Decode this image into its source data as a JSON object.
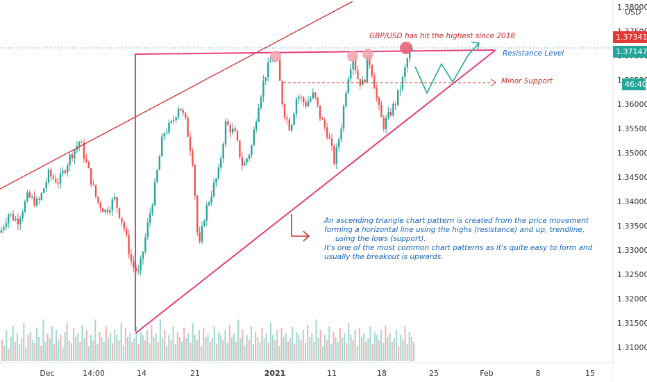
{
  "chart_data": {
    "type": "candlestick",
    "pair": "GBP/USD",
    "currency_label": "USD",
    "y_axis": {
      "range": [
        1.3075,
        1.3835
      ],
      "ticks": [
        "1.38000",
        "1.37500",
        "1.37000",
        "1.36500",
        "1.36000",
        "1.35500",
        "1.35000",
        "1.34500",
        "1.34000",
        "1.33500",
        "1.33000",
        "1.32500",
        "1.32000",
        "1.31500",
        "1.31000"
      ]
    },
    "x_axis": {
      "ticks": [
        "Dec",
        "14:00",
        "14",
        "21",
        "2021",
        "11",
        "18",
        "25",
        "Feb",
        "8",
        "15"
      ]
    },
    "price_badges": {
      "last_price": {
        "value": "1.37341",
        "color": "#e53935"
      },
      "current_price": {
        "value": "1.37147",
        "color": "#26a69a"
      },
      "countdown": {
        "value": "46:40",
        "color": "#26a69a"
      }
    },
    "annotations": {
      "headline": "GBP/USD has hit the highest since 2018",
      "resistance_label": "Resistance Level",
      "support_label": "Minor Support",
      "explanation": [
        "An ascending triangle chart pattern is created from the price movement",
        "forming a horizontal line using the highs (resistance)  and up, trendline,",
        "using the lows (support).",
        "It's one of the most common chart patterns as it's quite easy to form and",
        "usually the breakout is upwards."
      ]
    },
    "levels": {
      "resistance": 1.3713,
      "minor_support": 1.3645,
      "triangle_low": 1.3125
    },
    "price_path": [
      [
        0,
        1.3335
      ],
      [
        12,
        1.3375
      ],
      [
        25,
        1.336
      ],
      [
        40,
        1.341
      ],
      [
        55,
        1.3395
      ],
      [
        70,
        1.3455
      ],
      [
        85,
        1.344
      ],
      [
        100,
        1.349
      ],
      [
        115,
        1.3525
      ],
      [
        128,
        1.346
      ],
      [
        140,
        1.34
      ],
      [
        152,
        1.338
      ],
      [
        165,
        1.3405
      ],
      [
        178,
        1.335
      ],
      [
        190,
        1.327
      ],
      [
        200,
        1.325
      ],
      [
        210,
        1.333
      ],
      [
        222,
        1.342
      ],
      [
        235,
        1.354
      ],
      [
        248,
        1.356
      ],
      [
        258,
        1.36
      ],
      [
        268,
        1.356
      ],
      [
        278,
        1.348
      ],
      [
        286,
        1.3295
      ],
      [
        295,
        1.3375
      ],
      [
        305,
        1.342
      ],
      [
        315,
        1.346
      ],
      [
        325,
        1.356
      ],
      [
        338,
        1.354
      ],
      [
        350,
        1.347
      ],
      [
        362,
        1.351
      ],
      [
        372,
        1.36
      ],
      [
        382,
        1.366
      ],
      [
        392,
        1.3695
      ],
      [
        400,
        1.368
      ],
      [
        408,
        1.359
      ],
      [
        418,
        1.355
      ],
      [
        428,
        1.362
      ],
      [
        440,
        1.36
      ],
      [
        452,
        1.362
      ],
      [
        462,
        1.357
      ],
      [
        472,
        1.354
      ],
      [
        482,
        1.348
      ],
      [
        492,
        1.356
      ],
      [
        500,
        1.365
      ],
      [
        508,
        1.37
      ],
      [
        516,
        1.365
      ],
      [
        524,
        1.364
      ],
      [
        530,
        1.37
      ],
      [
        537,
        1.366
      ],
      [
        544,
        1.36
      ],
      [
        552,
        1.3555
      ],
      [
        560,
        1.3575
      ],
      [
        570,
        1.3605
      ],
      [
        580,
        1.365
      ],
      [
        588,
        1.37
      ],
      [
        596,
        1.3715
      ]
    ],
    "volume": [
      30,
      22,
      45,
      18,
      35,
      50,
      28,
      40,
      25,
      33,
      55,
      20,
      38,
      42,
      30,
      26,
      48,
      35,
      22,
      60,
      28,
      40,
      33,
      50,
      25,
      45,
      30,
      38,
      20,
      42,
      55,
      30,
      26,
      48,
      35,
      40,
      28,
      52,
      33,
      45,
      22,
      38,
      30,
      60,
      25,
      42,
      35,
      28,
      50,
      33,
      40,
      26,
      45,
      38,
      30,
      55,
      22,
      48,
      35,
      40,
      28,
      33,
      50,
      25,
      42,
      38,
      30,
      45,
      26,
      52,
      35,
      40,
      28,
      60,
      33,
      45,
      22,
      38,
      30,
      50,
      25,
      42,
      35,
      28,
      48,
      33,
      40,
      26,
      55,
      38,
      30,
      45,
      22,
      48,
      35,
      40,
      28,
      33,
      50,
      25,
      42,
      38,
      30,
      45,
      26,
      52,
      35,
      40,
      28,
      60,
      33,
      45,
      22,
      38,
      30,
      50,
      25,
      42,
      35,
      28,
      48,
      33,
      40,
      26,
      55,
      38,
      30,
      45,
      22,
      48,
      35,
      40,
      28,
      33,
      50,
      25,
      42,
      38,
      30,
      45,
      26,
      52,
      35,
      40,
      28,
      60,
      33,
      45,
      22,
      38,
      30,
      50,
      25,
      42,
      35,
      28,
      48,
      33,
      40,
      26,
      55,
      38,
      30,
      45,
      22,
      48,
      35,
      40,
      28,
      33,
      50,
      25,
      42,
      38,
      30,
      45,
      26,
      52,
      35,
      40,
      28,
      33,
      45,
      22,
      38,
      30,
      50,
      25,
      42,
      35,
      28
    ]
  }
}
